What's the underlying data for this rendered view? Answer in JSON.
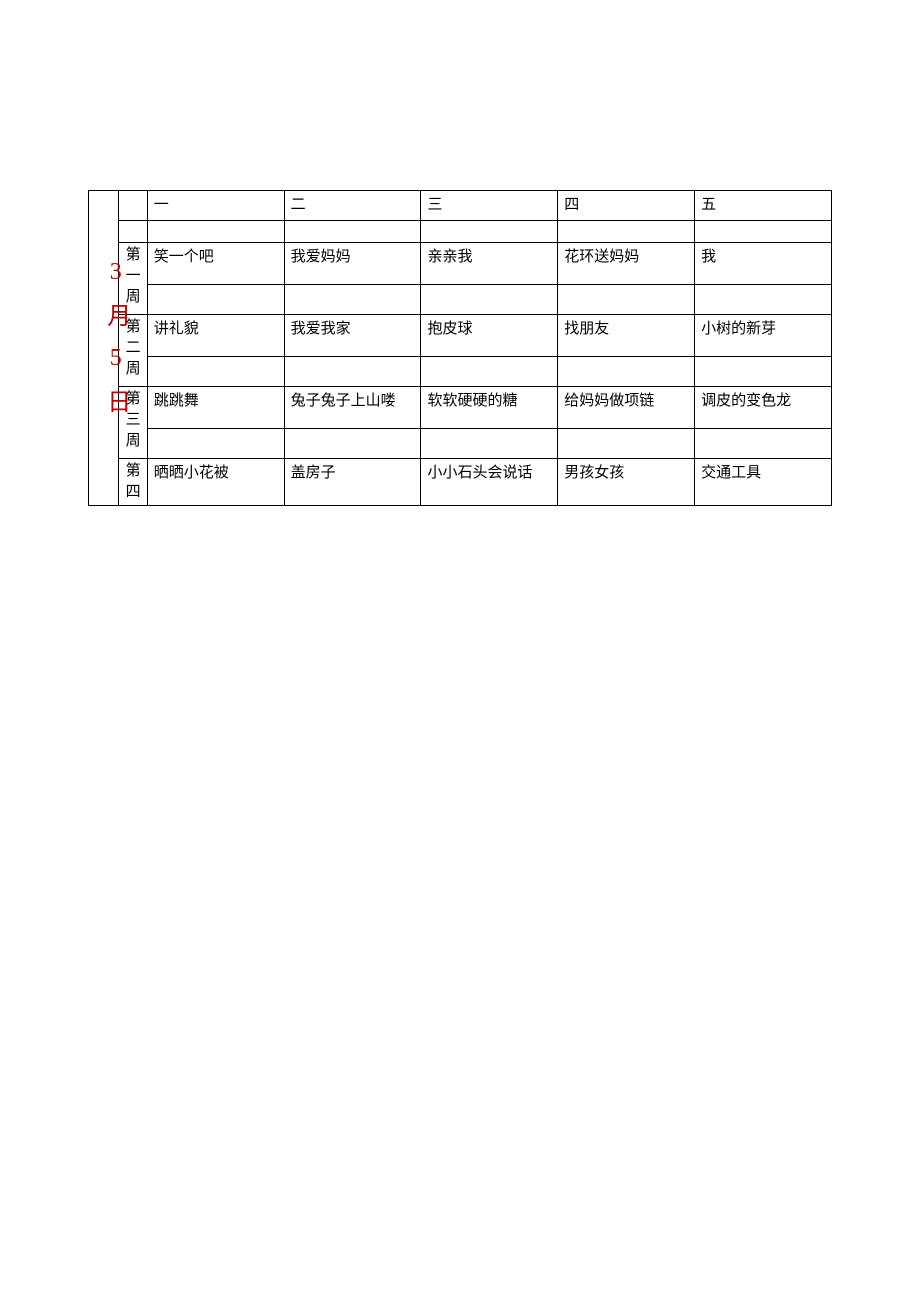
{
  "table": {
    "month_label": "3月5日",
    "month_label_color": "#c00000",
    "border_color": "#000000",
    "background_color": "#ffffff",
    "text_color": "#000000",
    "font_size_body": 15,
    "font_size_month": 24,
    "day_headers": [
      "一",
      "二",
      "三",
      "四",
      "五"
    ],
    "weeks": [
      {
        "label": "第一周",
        "activities": [
          "笑一个吧",
          "我爱妈妈",
          "亲亲我",
          "花环送妈妈",
          "我"
        ]
      },
      {
        "label": "第二周",
        "activities": [
          "讲礼貌",
          "我爱我家",
          "抱皮球",
          "找朋友",
          "小树的新芽"
        ]
      },
      {
        "label": "第三周",
        "activities": [
          "跳跳舞",
          "兔子兔子上山喽",
          "软软硬硬的糖",
          "给妈妈做项链",
          "调皮的变色龙"
        ]
      },
      {
        "label": "第四",
        "activities": [
          "晒晒小花被",
          "盖房子",
          "小小石头会说话",
          "男孩女孩",
          "交通工具"
        ]
      }
    ]
  }
}
